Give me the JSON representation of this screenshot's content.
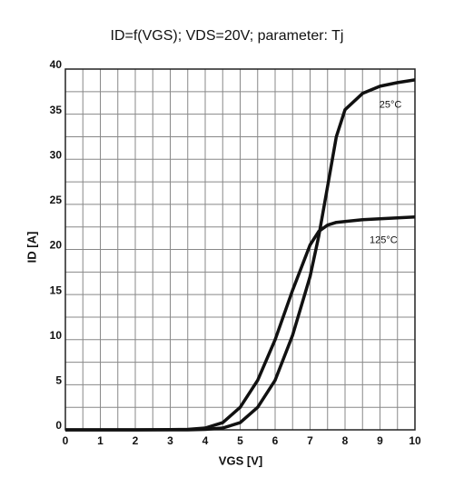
{
  "chart_data": {
    "type": "line",
    "title": "ID=f(VGS); VDS=20V; parameter: Tj",
    "xlabel": "VGS [V]",
    "ylabel": "ID [A]",
    "x": [
      0,
      1,
      2,
      3,
      3.5,
      4,
      4.5,
      5,
      5.5,
      6,
      6.5,
      7,
      7.25,
      7.5,
      7.75,
      8,
      8.5,
      9,
      9.5,
      10
    ],
    "series": [
      {
        "name": "25°C",
        "color": "#111111",
        "values": [
          0,
          0,
          0,
          0,
          0,
          0.05,
          0.2,
          0.8,
          2.5,
          5.5,
          10.5,
          17,
          21.5,
          27,
          32.5,
          35.5,
          37.3,
          38.1,
          38.5,
          38.8
        ]
      },
      {
        "name": "125°C",
        "color": "#111111",
        "values": [
          0,
          0,
          0,
          0.02,
          0.05,
          0.2,
          0.8,
          2.5,
          5.5,
          10,
          15.5,
          20.5,
          22,
          22.7,
          23,
          23.1,
          23.3,
          23.4,
          23.5,
          23.6
        ]
      }
    ],
    "xlim": [
      0,
      10
    ],
    "ylim": [
      0,
      40
    ],
    "xticks": [
      0,
      1,
      2,
      3,
      4,
      5,
      6,
      7,
      8,
      9,
      10
    ],
    "yticks": [
      0,
      5,
      10,
      15,
      20,
      25,
      30,
      35,
      40
    ],
    "x_minor_grid": [
      0.5,
      1.5,
      2.5,
      3.5,
      4.5,
      5.5,
      6.5,
      7.5,
      8.5,
      9.5
    ],
    "y_minor_grid": [
      2.5,
      7.5,
      12.5,
      17.5,
      22.5,
      27.5,
      32.5,
      37.5
    ],
    "grid": true
  }
}
